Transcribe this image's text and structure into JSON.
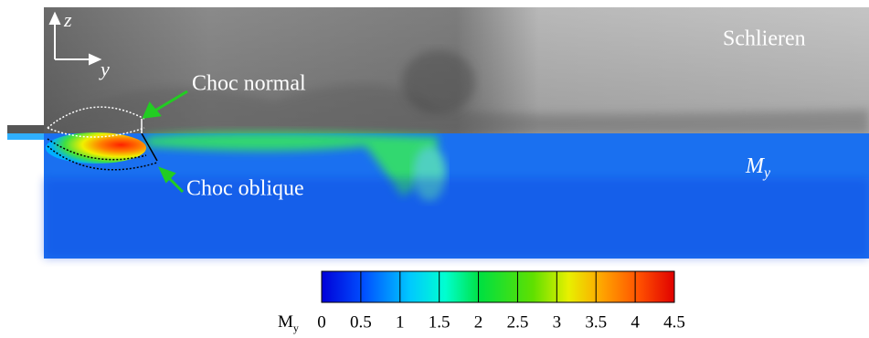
{
  "panel_labels": {
    "top": "Schlieren",
    "bottom": {
      "base": "M",
      "sub": "y"
    }
  },
  "axes": {
    "vertical": "z",
    "horizontal": "y"
  },
  "annotations": {
    "normal_shock": "Choc normal",
    "oblique_shock": "Choc oblique"
  },
  "colorbar": {
    "label": {
      "base": "M",
      "sub": "y"
    },
    "lim": [
      0,
      4.5
    ],
    "ticks": [
      0,
      0.5,
      1,
      1.5,
      2,
      2.5,
      3,
      3.5,
      4,
      4.5
    ]
  }
}
